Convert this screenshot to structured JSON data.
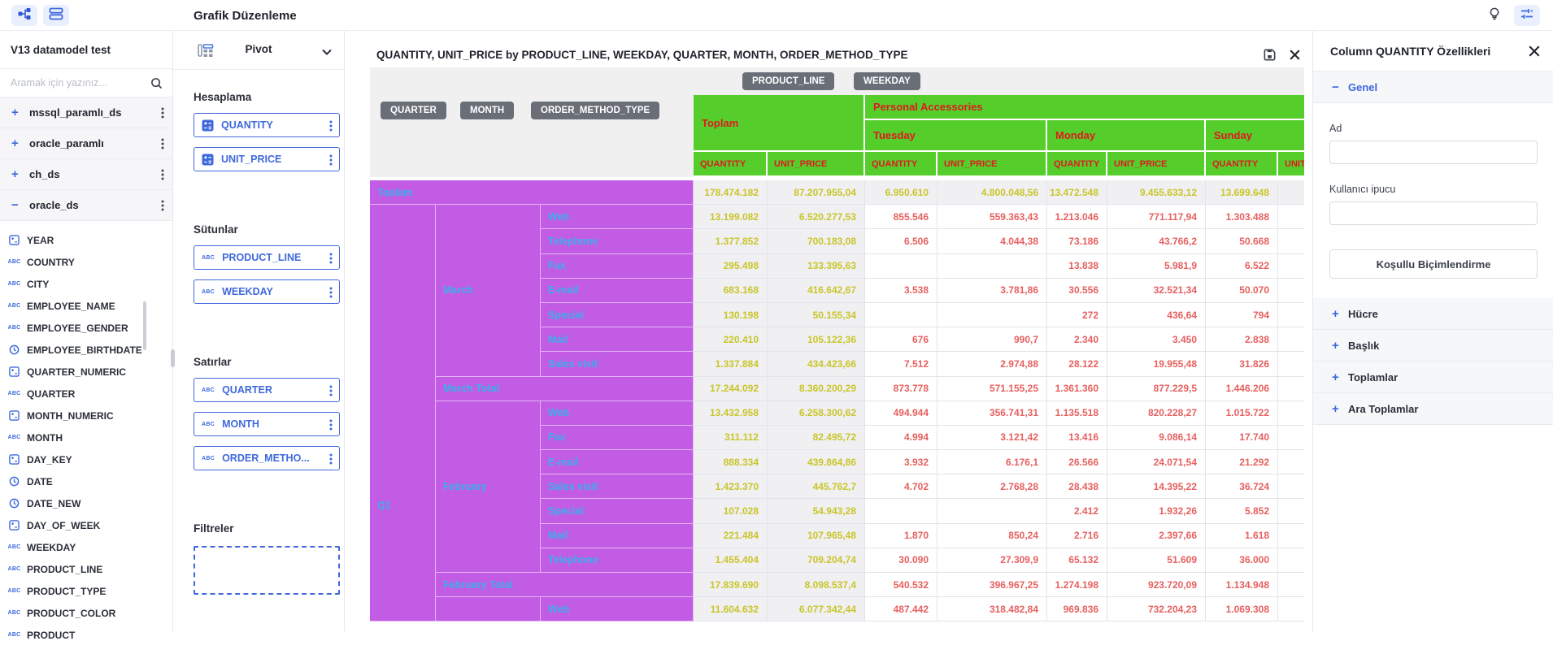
{
  "topbar": {
    "title": "Grafik Düzenleme"
  },
  "sidebar": {
    "title": "V13 datamodel test",
    "search_placeholder": "Aramak için yazınız...",
    "datasources": [
      {
        "name": "mssql_paramlı_ds",
        "expanded": false
      },
      {
        "name": "oracle_paramlı",
        "expanded": false
      },
      {
        "name": "ch_ds",
        "expanded": false
      },
      {
        "name": "oracle_ds",
        "expanded": true
      }
    ],
    "fields": [
      {
        "name": "YEAR",
        "type": "numeric"
      },
      {
        "name": "COUNTRY",
        "type": "string"
      },
      {
        "name": "CITY",
        "type": "string"
      },
      {
        "name": "EMPLOYEE_NAME",
        "type": "string"
      },
      {
        "name": "EMPLOYEE_GENDER",
        "type": "string"
      },
      {
        "name": "EMPLOYEE_BIRTHDATE",
        "type": "date"
      },
      {
        "name": "QUARTER_NUMERIC",
        "type": "numeric"
      },
      {
        "name": "QUARTER",
        "type": "string"
      },
      {
        "name": "MONTH_NUMERIC",
        "type": "numeric"
      },
      {
        "name": "MONTH",
        "type": "string"
      },
      {
        "name": "DAY_KEY",
        "type": "numeric"
      },
      {
        "name": "DATE",
        "type": "date"
      },
      {
        "name": "DATE_NEW",
        "type": "date"
      },
      {
        "name": "DAY_OF_WEEK",
        "type": "numeric"
      },
      {
        "name": "WEEKDAY",
        "type": "string"
      },
      {
        "name": "PRODUCT_LINE",
        "type": "string"
      },
      {
        "name": "PRODUCT_TYPE",
        "type": "string"
      },
      {
        "name": "PRODUCT_COLOR",
        "type": "string"
      },
      {
        "name": "PRODUCT",
        "type": "string"
      }
    ]
  },
  "panel": {
    "selector_label": "Pivot",
    "sections": [
      {
        "label": "Hesaplama",
        "chips": [
          {
            "label": "QUANTITY",
            "type": "numeric"
          },
          {
            "label": "UNIT_PRICE",
            "type": "numeric"
          }
        ]
      },
      {
        "label": "Sütunlar",
        "chips": [
          {
            "label": "PRODUCT_LINE",
            "type": "string"
          },
          {
            "label": "WEEKDAY",
            "type": "string"
          }
        ]
      },
      {
        "label": "Satırlar",
        "chips": [
          {
            "label": "QUARTER",
            "type": "string"
          },
          {
            "label": "MONTH",
            "type": "string"
          },
          {
            "label": "ORDER_METHO...",
            "type": "string"
          }
        ]
      },
      {
        "label": "Filtreler",
        "chips": [],
        "dropzone": true
      }
    ]
  },
  "pivot": {
    "title": "QUANTITY, UNIT_PRICE by PRODUCT_LINE, WEEKDAY, QUARTER, MONTH, ORDER_METHOD_TYPE",
    "column_pills": [
      "PRODUCT_LINE",
      "WEEKDAY"
    ],
    "row_pills": [
      "QUARTER",
      "MONTH",
      "ORDER_METHOD_TYPE"
    ],
    "grand_col_label": "Toplam",
    "product_group": "Personal Accessories",
    "weekdays": [
      "Tuesday",
      "Monday",
      "Sunday"
    ],
    "measure_headers": [
      "QUANTITY",
      "UNIT_PRICE",
      "QUANTITY",
      "UNIT_PRICE",
      "QUANTITY",
      "UNIT_PRICE",
      "QUANTITY",
      "UNIT_PRICE"
    ],
    "quarter_label": "Q1",
    "grand_row": {
      "label": "Toplam",
      "values": [
        "178.474.182",
        "87.207.955,04",
        "6.950.610",
        "4.800.048,56",
        "13.472.548",
        "9.455.633,12",
        "13.699.648"
      ]
    },
    "groups": [
      {
        "month": "March",
        "rows": [
          {
            "label": "Web",
            "values": [
              "13.199.082",
              "6.520.277,53",
              "855.546",
              "559.363,43",
              "1.213.046",
              "771.117,94",
              "1.303.488"
            ]
          },
          {
            "label": "Telephone",
            "values": [
              "1.377.852",
              "700.183,08",
              "6.506",
              "4.044,38",
              "73.186",
              "43.766,2",
              "50.668"
            ]
          },
          {
            "label": "Fax",
            "values": [
              "295.498",
              "133.395,63",
              "",
              "",
              "13.838",
              "5.981,9",
              "6.522"
            ]
          },
          {
            "label": "E-mail",
            "values": [
              "683.168",
              "416.642,67",
              "3.538",
              "3.781,86",
              "30.556",
              "32.521,34",
              "50.070"
            ]
          },
          {
            "label": "Special",
            "values": [
              "130.198",
              "50.155,34",
              "",
              "",
              "272",
              "436,64",
              "794"
            ]
          },
          {
            "label": "Mail",
            "values": [
              "220.410",
              "105.122,36",
              "676",
              "990,7",
              "2.340",
              "3.450",
              "2.838"
            ]
          },
          {
            "label": "Sales visit",
            "values": [
              "1.337.884",
              "434.423,66",
              "7.512",
              "2.974,88",
              "28.122",
              "19.955,48",
              "31.826"
            ]
          }
        ],
        "total": {
          "label": "March Total",
          "values": [
            "17.244.092",
            "8.360.200,29",
            "873.778",
            "571.155,25",
            "1.361.360",
            "877.229,5",
            "1.446.206"
          ]
        }
      },
      {
        "month": "February",
        "rows": [
          {
            "label": "Web",
            "values": [
              "13.432.958",
              "6.258.300,62",
              "494.944",
              "356.741,31",
              "1.135.518",
              "820.228,27",
              "1.015.722"
            ]
          },
          {
            "label": "Fax",
            "values": [
              "311.112",
              "82.495,72",
              "4.994",
              "3.121,42",
              "13.416",
              "9.086,14",
              "17.740"
            ]
          },
          {
            "label": "E-mail",
            "values": [
              "888.334",
              "439.864,86",
              "3.932",
              "6.176,1",
              "26.566",
              "24.071,54",
              "21.292"
            ]
          },
          {
            "label": "Sales visit",
            "values": [
              "1.423.370",
              "445.762,7",
              "4.702",
              "2.768,28",
              "28.438",
              "14.395,22",
              "36.724"
            ]
          },
          {
            "label": "Special",
            "values": [
              "107.028",
              "54.943,28",
              "",
              "",
              "2.412",
              "1.932,26",
              "5.852"
            ]
          },
          {
            "label": "Mail",
            "values": [
              "221.484",
              "107.965,48",
              "1.870",
              "850,24",
              "2.716",
              "2.397,66",
              "1.618"
            ]
          },
          {
            "label": "Telephone",
            "values": [
              "1.455.404",
              "709.204,74",
              "30.090",
              "27.309,9",
              "65.132",
              "51.609",
              "36.000"
            ]
          }
        ],
        "total": {
          "label": "February Total",
          "values": [
            "17.839.690",
            "8.098.537,4",
            "540.532",
            "396.967,25",
            "1.274.198",
            "923.720,09",
            "1.134.948"
          ]
        }
      },
      {
        "month": "",
        "rows": [
          {
            "label": "Web",
            "values": [
              "11.604.632",
              "6.077.342,44",
              "487.442",
              "318.482,84",
              "969.836",
              "732.204,23",
              "1.069.308"
            ]
          }
        ],
        "total": null
      }
    ]
  },
  "props": {
    "title": "Column QUANTITY Özellikleri",
    "general": {
      "label": "Genel",
      "fields": [
        {
          "label": "Ad",
          "value": ""
        },
        {
          "label": "Kullanıcı ipucu",
          "value": ""
        }
      ],
      "button": "Koşullu Biçimlendirme"
    },
    "sections": [
      "Hücre",
      "Başlık",
      "Toplamlar",
      "Ara Toplamlar"
    ]
  },
  "colors": {
    "accent_blue": "#3e68dd",
    "header_green": "#55ce2b",
    "header_red": "#e0191f",
    "row_header_magenta": "#c25ce4",
    "row_header_text": "#3ab0e8",
    "total_text": "#c9c52b",
    "value_red": "#e6605f"
  }
}
